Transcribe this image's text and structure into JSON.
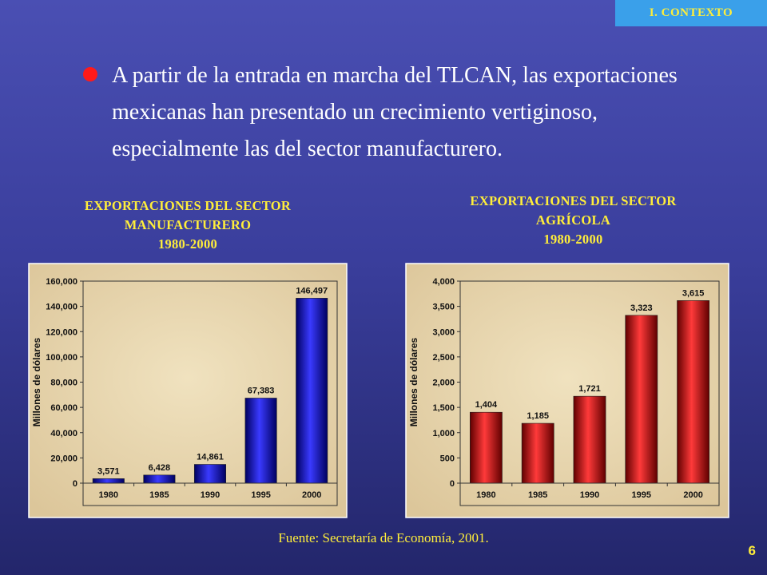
{
  "header": {
    "section_tag": "I. CONTEXTO"
  },
  "bullet": {
    "text": "A partir de la entrada en marcha del TLCAN, las exportaciones mexicanas han presentado un crecimiento vertiginoso, especialmente las del sector manufacturero."
  },
  "colors": {
    "background": "#3f44a8",
    "tag_bg": "#3aa0ea",
    "title_text": "#ffee3a",
    "bullet_dot": "#ff1a1a",
    "panel": "#e8d7b0",
    "bar_manufacturing": "#1010d0",
    "bar_agriculture": "#d01010"
  },
  "charts": [
    {
      "title_lines": [
        "EXPORTACIONES  DEL SECTOR",
        "MANUFACTURERO",
        "1980-2000"
      ]
    },
    {
      "title_lines": [
        "EXPORTACIONES  DEL SECTOR",
        "AGRÍCOLA",
        "1980-2000"
      ]
    }
  ],
  "chart_data": [
    {
      "type": "bar",
      "title": "EXPORTACIONES  DEL SECTOR MANUFACTURERO 1980-2000",
      "ylabel": "Millones de dólares",
      "categories": [
        "1980",
        "1985",
        "1990",
        "1995",
        "2000"
      ],
      "values": [
        3571,
        6428,
        14861,
        67383,
        146497
      ],
      "value_labels": [
        "3,571",
        "6,428",
        "14,861",
        "67,383",
        "146,497"
      ],
      "ylim": [
        0,
        160000
      ],
      "yticks": [
        0,
        20000,
        40000,
        60000,
        80000,
        100000,
        120000,
        140000,
        160000
      ],
      "ytick_labels": [
        "0",
        "20,000",
        "40,000",
        "60,000",
        "80,000",
        "100,000",
        "120,000",
        "140,000",
        "160,000"
      ],
      "color": "#1010d0"
    },
    {
      "type": "bar",
      "title": "EXPORTACIONES  DEL SECTOR AGRÍCOLA 1980-2000",
      "ylabel": "Millones de dólares",
      "categories": [
        "1980",
        "1985",
        "1990",
        "1995",
        "2000"
      ],
      "values": [
        1404,
        1185,
        1721,
        3323,
        3615
      ],
      "value_labels": [
        "1,404",
        "1,185",
        "1,721",
        "3,323",
        "3,615"
      ],
      "ylim": [
        0,
        4000
      ],
      "yticks": [
        0,
        500,
        1000,
        1500,
        2000,
        2500,
        3000,
        3500,
        4000
      ],
      "ytick_labels": [
        "0",
        "500",
        "1,000",
        "1,500",
        "2,000",
        "2,500",
        "3,000",
        "3,500",
        "4,000"
      ],
      "color": "#d01010"
    }
  ],
  "footer": {
    "source": "Fuente: Secretaría de Economía, 2001.",
    "page_number": "6"
  }
}
